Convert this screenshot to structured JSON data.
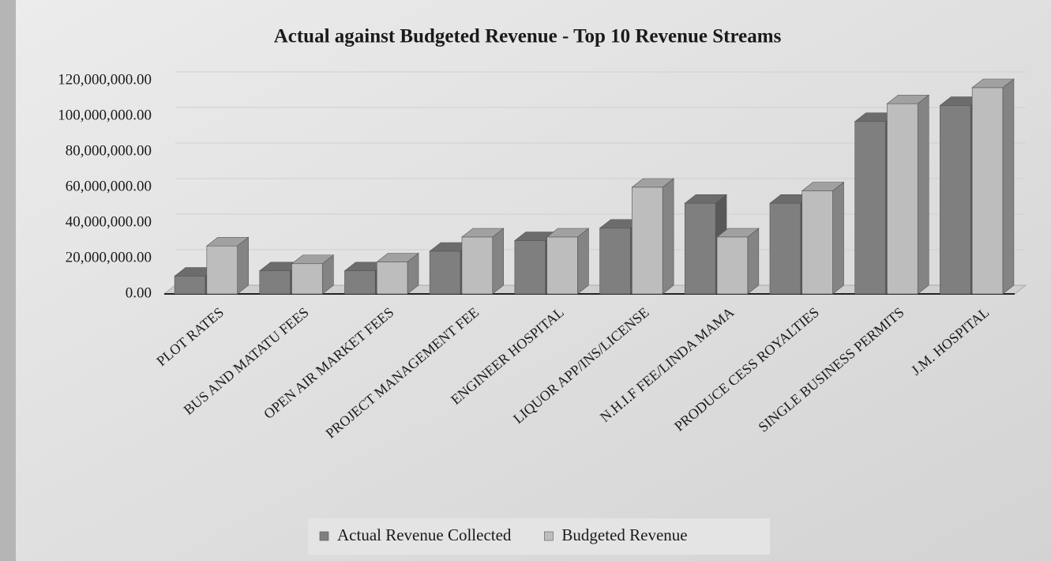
{
  "chart_data": {
    "type": "bar3d",
    "title": "Actual against Budgeted Revenue - Top 10 Revenue Streams",
    "categories": [
      "PLOT RATES",
      "BUS AND MATATU FEES",
      "OPEN AIR MARKET FEES",
      "PROJECT MANAGEMENT FEE",
      "ENGINEER HOSPITAL",
      "LIQUOR APP/INS/LICENSE",
      "N.H.I.F FEE/LINDA MAMA",
      "PRODUCE CESS ROYALTIES",
      "SINGLE BUSINESS PERMITS",
      "J.M. HOSPITAL"
    ],
    "series": [
      {
        "name": "Actual Revenue Collected",
        "color": "#7f7f7f",
        "values": [
          10000000,
          13000000,
          13000000,
          24000000,
          30000000,
          37000000,
          51000000,
          51000000,
          97000000,
          106000000
        ]
      },
      {
        "name": "Budgeted Revenue",
        "color": "#bdbdbd",
        "values": [
          27000000,
          17000000,
          18000000,
          32000000,
          32000000,
          60000000,
          32000000,
          58000000,
          107000000,
          116000000
        ]
      }
    ],
    "ylim": [
      0,
      120000000
    ],
    "yticks": [
      {
        "value": 0,
        "label": "0.00"
      },
      {
        "value": 20000000,
        "label": "20,000,000.00"
      },
      {
        "value": 40000000,
        "label": "40,000,000.00"
      },
      {
        "value": 60000000,
        "label": "60,000,000.00"
      },
      {
        "value": 80000000,
        "label": "80,000,000.00"
      },
      {
        "value": 100000000,
        "label": "100,000,000.00"
      },
      {
        "value": 120000000,
        "label": "120,000,000.00"
      }
    ],
    "grid": true,
    "legend": "bottom"
  }
}
